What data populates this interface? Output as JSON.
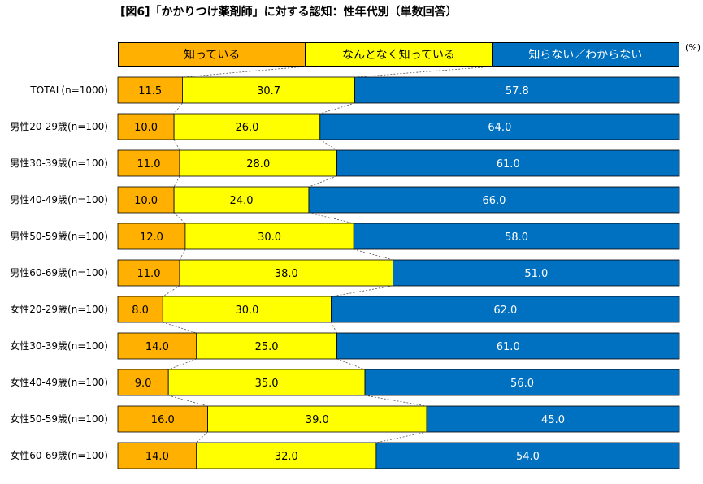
{
  "title": "[図6]「かかりつけ薬剤師」に対する認知：性年代別（単数回答）",
  "unit": "(%)",
  "chart_data": {
    "type": "bar",
    "orientation": "horizontal",
    "stacked": true,
    "percent_stacked": true,
    "categories": [
      "TOTAL(n=1000)",
      "男性20-29歳(n=100)",
      "男性30-39歳(n=100)",
      "男性40-49歳(n=100)",
      "男性50-59歳(n=100)",
      "男性60-69歳(n=100)",
      "女性20-29歳(n=100)",
      "女性30-39歳(n=100)",
      "女性40-49歳(n=100)",
      "女性50-59歳(n=100)",
      "女性60-69歳(n=100)"
    ],
    "series": [
      {
        "name": "知っている",
        "color": "#FFB000",
        "text_color": "#000000",
        "values": [
          11.5,
          10.0,
          11.0,
          10.0,
          12.0,
          11.0,
          8.0,
          14.0,
          9.0,
          16.0,
          14.0
        ]
      },
      {
        "name": "なんとなく知っている",
        "color": "#FFFF00",
        "text_color": "#000000",
        "values": [
          30.7,
          26.0,
          28.0,
          24.0,
          30.0,
          38.0,
          30.0,
          25.0,
          35.0,
          39.0,
          32.0
        ]
      },
      {
        "name": "知らない／わからない",
        "color": "#0070C0",
        "text_color": "#FFFFFF",
        "values": [
          57.8,
          64.0,
          61.0,
          66.0,
          58.0,
          51.0,
          62.0,
          61.0,
          56.0,
          45.0,
          54.0
        ]
      }
    ],
    "xlim": [
      0,
      100
    ],
    "legend_position": "top",
    "series_lines": true,
    "grid": false
  }
}
